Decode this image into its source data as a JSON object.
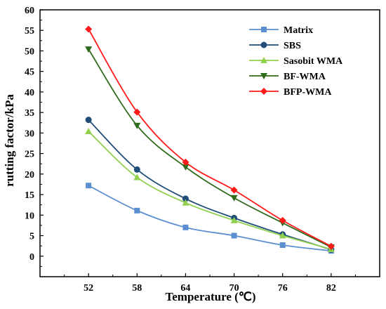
{
  "chart_data": {
    "type": "line",
    "title": "",
    "xlabel": "Temperature (℃)",
    "ylabel": "rutting factor/kPa",
    "x": [
      52,
      58,
      64,
      70,
      76,
      82
    ],
    "xlim": [
      46,
      88
    ],
    "ylim": [
      -5,
      60
    ],
    "y_ticks": [
      0,
      5,
      10,
      15,
      20,
      25,
      30,
      35,
      40,
      45,
      50,
      55,
      60
    ],
    "x_ticks": [
      52,
      58,
      64,
      70,
      76,
      82
    ],
    "grid": false,
    "legend_position": "top-right",
    "series": [
      {
        "name": "Matrix",
        "color": "#5b8fd1",
        "marker": "square",
        "values": [
          17.2,
          11.1,
          7.0,
          5.0,
          2.7,
          1.3
        ]
      },
      {
        "name": "SBS",
        "color": "#1f4e79",
        "marker": "circle",
        "values": [
          33.2,
          21.1,
          14.0,
          9.3,
          5.3,
          1.6
        ]
      },
      {
        "name": "Sasobit WMA",
        "color": "#92d050",
        "marker": "triangle-up",
        "values": [
          30.4,
          19.2,
          13.0,
          8.7,
          5.0,
          1.7
        ]
      },
      {
        "name": "BF-WMA",
        "color": "#2e6b1a",
        "marker": "triangle-down",
        "values": [
          50.4,
          31.8,
          21.7,
          14.2,
          8.1,
          2.2
        ]
      },
      {
        "name": "BFP-WMA",
        "color": "#ff1a1a",
        "marker": "diamond",
        "values": [
          55.3,
          35.1,
          22.9,
          16.1,
          8.7,
          2.4
        ]
      }
    ]
  }
}
